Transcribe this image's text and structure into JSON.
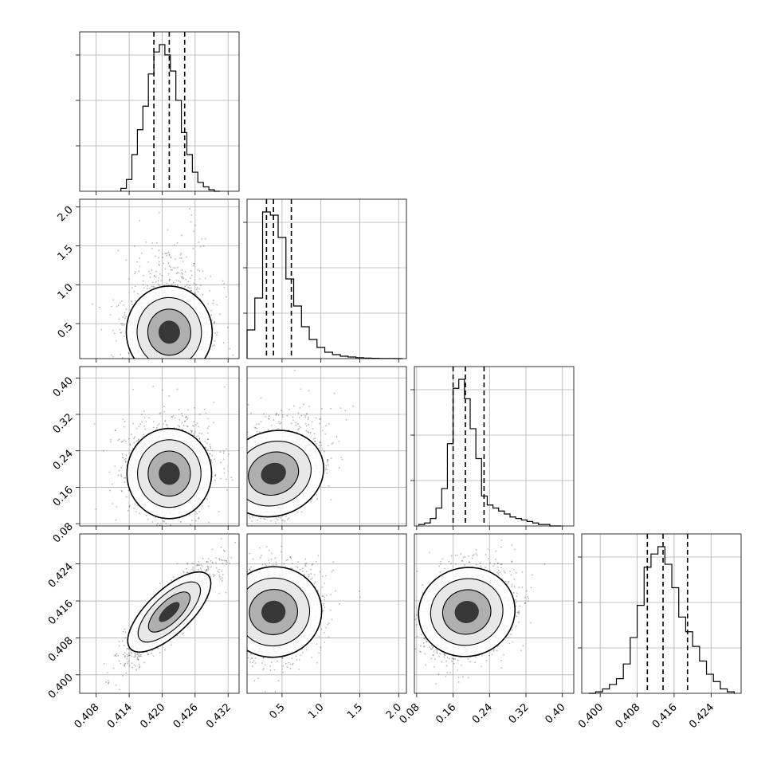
{
  "chart_data": {
    "type": "corner",
    "colors": {
      "line": "#000000",
      "grid": "#b0b0b0",
      "frame": "#000000"
    },
    "grid": true,
    "params": [
      {
        "range": [
          0.405,
          0.434
        ],
        "ticks": [
          "0.408",
          "0.414",
          "0.420",
          "0.426",
          "0.432"
        ],
        "tick_values": [
          0.408,
          0.414,
          0.42,
          0.426,
          0.432
        ]
      },
      {
        "range": [
          0.05,
          2.1
        ],
        "ticks": [
          "0.5",
          "1.0",
          "1.5",
          "2.0"
        ],
        "tick_values": [
          0.5,
          1.0,
          1.5,
          2.0
        ]
      },
      {
        "range": [
          0.075,
          0.425
        ],
        "ticks": [
          "0.08",
          "0.16",
          "0.24",
          "0.32",
          "0.40"
        ],
        "tick_values": [
          0.08,
          0.16,
          0.24,
          0.32,
          0.4
        ]
      },
      {
        "range": [
          0.396,
          0.4305
        ],
        "ticks": [
          "0.400",
          "0.408",
          "0.416",
          "0.424"
        ],
        "tick_values": [
          0.4,
          0.408,
          0.416,
          0.424
        ]
      }
    ],
    "histograms": [
      {
        "bins": [
          0.4125,
          0.4135,
          0.4145,
          0.4155,
          0.4165,
          0.4175,
          0.4185,
          0.4195,
          0.4205,
          0.4215,
          0.4225,
          0.4235,
          0.4245,
          0.4255,
          0.4265,
          0.4275,
          0.4285,
          0.4295,
          0.4305
        ],
        "counts": [
          0.02,
          0.08,
          0.25,
          0.42,
          0.58,
          0.8,
          0.95,
          1.0,
          0.93,
          0.82,
          0.62,
          0.4,
          0.25,
          0.13,
          0.06,
          0.03,
          0.01,
          0.0
        ],
        "quantiles": [
          0.4185,
          0.4213,
          0.4241
        ]
      },
      {
        "bins": [
          0.05,
          0.15,
          0.25,
          0.35,
          0.45,
          0.55,
          0.65,
          0.75,
          0.85,
          0.95,
          1.05,
          1.15,
          1.25,
          1.35,
          1.45,
          1.55,
          1.65,
          1.75,
          1.85,
          1.95,
          2.05
        ],
        "counts": [
          0.18,
          0.38,
          0.92,
          0.9,
          0.76,
          0.5,
          0.33,
          0.2,
          0.12,
          0.07,
          0.04,
          0.025,
          0.015,
          0.01,
          0.006,
          0.003,
          0.002,
          0.001,
          0.001,
          0.0
        ],
        "quantiles": [
          0.3,
          0.39,
          0.62
        ]
      },
      {
        "bins": [
          0.085,
          0.0975,
          0.11,
          0.1225,
          0.135,
          0.1475,
          0.16,
          0.1725,
          0.185,
          0.1975,
          0.21,
          0.2225,
          0.235,
          0.2475,
          0.26,
          0.2725,
          0.285,
          0.2975,
          0.31,
          0.3225,
          0.335,
          0.3475,
          0.36,
          0.3725,
          0.385,
          0.3975
        ],
        "counts": [
          0.01,
          0.02,
          0.05,
          0.12,
          0.25,
          0.55,
          0.92,
          0.98,
          0.85,
          0.65,
          0.45,
          0.2,
          0.14,
          0.12,
          0.1,
          0.08,
          0.06,
          0.05,
          0.04,
          0.03,
          0.02,
          0.01,
          0.01,
          0.0,
          0.0
        ],
        "quantiles": [
          0.16,
          0.187,
          0.228
        ]
      },
      {
        "bins": [
          0.3975,
          0.399,
          0.4005,
          0.402,
          0.4035,
          0.405,
          0.4065,
          0.408,
          0.4095,
          0.411,
          0.4125,
          0.414,
          0.4155,
          0.417,
          0.4185,
          0.42,
          0.4215,
          0.423,
          0.4245,
          0.426,
          0.4275,
          0.429
        ],
        "counts": [
          0.0,
          0.01,
          0.03,
          0.06,
          0.1,
          0.2,
          0.38,
          0.6,
          0.86,
          0.95,
          1.0,
          0.88,
          0.72,
          0.52,
          0.42,
          0.32,
          0.22,
          0.13,
          0.08,
          0.03,
          0.01
        ],
        "quantiles": [
          0.4102,
          0.4136,
          0.4189
        ]
      }
    ],
    "pairs": [
      {
        "row": 1,
        "col": 0,
        "center": [
          0.4213,
          0.39
        ],
        "spread": [
          0.0035,
          0.27
        ],
        "rho": 0.05,
        "skew_y": 1.5
      },
      {
        "row": 2,
        "col": 0,
        "center": [
          0.4213,
          0.19
        ],
        "spread": [
          0.0035,
          0.045
        ],
        "rho": 0.0,
        "skew_y": 0.7
      },
      {
        "row": 2,
        "col": 1,
        "center": [
          0.39,
          0.19
        ],
        "spread": [
          0.27,
          0.045
        ],
        "rho": 0.35,
        "skew_y": 0.7
      },
      {
        "row": 3,
        "col": 0,
        "center": [
          0.4213,
          0.4136
        ],
        "spread": [
          0.0035,
          0.0045
        ],
        "rho": 0.88,
        "skew_y": 0.0
      },
      {
        "row": 3,
        "col": 1,
        "center": [
          0.39,
          0.4136
        ],
        "spread": [
          0.27,
          0.0045
        ],
        "rho": 0.15,
        "skew_y": 0.0
      },
      {
        "row": 3,
        "col": 2,
        "center": [
          0.19,
          0.4136
        ],
        "spread": [
          0.045,
          0.0045
        ],
        "rho": 0.25,
        "skew_y": 0.0
      }
    ]
  }
}
